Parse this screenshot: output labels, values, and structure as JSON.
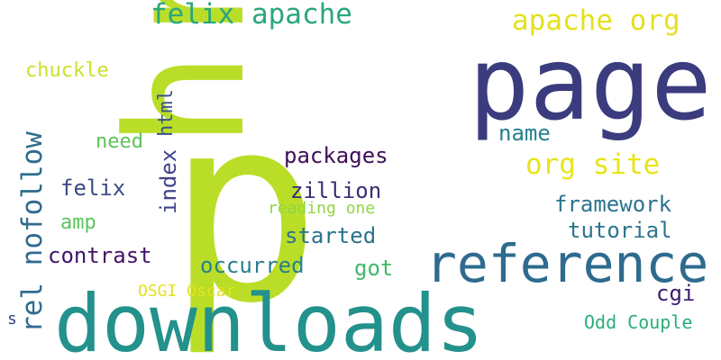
{
  "words": [
    {
      "id": "href",
      "text": "href",
      "color": "#bade28"
    },
    {
      "id": "p",
      "text": "p",
      "color": "#bade28"
    },
    {
      "id": "page",
      "text": "page",
      "color": "#3b3c7e"
    },
    {
      "id": "downloads",
      "text": "downloads",
      "color": "#23918c"
    },
    {
      "id": "reference",
      "text": "reference",
      "color": "#2e6b8e"
    },
    {
      "id": "felix-apache",
      "text": "felix apache",
      "color": "#2aa77f"
    },
    {
      "id": "apache-org",
      "text": "apache org",
      "color": "#e4e11c"
    },
    {
      "id": "org-site",
      "text": "org site",
      "color": "#e8e41a"
    },
    {
      "id": "rel-nofollow",
      "text": "rel nofollow",
      "color": "#2f6c8e"
    },
    {
      "id": "chuckle",
      "text": "chuckle",
      "color": "#cbe12b"
    },
    {
      "id": "html",
      "text": "html",
      "color": "#3a5589"
    },
    {
      "id": "name",
      "text": "name",
      "color": "#257f8e"
    },
    {
      "id": "need",
      "text": "need",
      "color": "#5dc35a"
    },
    {
      "id": "packages",
      "text": "packages",
      "color": "#3f0f57"
    },
    {
      "id": "felix",
      "text": "felix",
      "color": "#3a4b86"
    },
    {
      "id": "index",
      "text": "index",
      "color": "#414487"
    },
    {
      "id": "zillion",
      "text": "zillion",
      "color": "#3d2a75"
    },
    {
      "id": "framework",
      "text": "framework",
      "color": "#2c738e"
    },
    {
      "id": "amp",
      "text": "amp",
      "color": "#5ac55e"
    },
    {
      "id": "reading-one",
      "text": "reading one",
      "color": "#8fd744"
    },
    {
      "id": "tutorial",
      "text": "tutorial",
      "color": "#2b758e"
    },
    {
      "id": "started",
      "text": "started",
      "color": "#2c718e"
    },
    {
      "id": "contrast",
      "text": "contrast",
      "color": "#43146a"
    },
    {
      "id": "occurred",
      "text": "occurred",
      "color": "#277f8e"
    },
    {
      "id": "got",
      "text": "got",
      "color": "#3fb86c"
    },
    {
      "id": "osgi-oscar",
      "text": "OSGI Oscar",
      "color": "#e5e21d"
    },
    {
      "id": "cgi",
      "text": "cgi",
      "color": "#3b1c6e"
    },
    {
      "id": "s",
      "text": "s",
      "color": "#3a4886"
    },
    {
      "id": "odd-couple",
      "text": "Odd Couple",
      "color": "#2aae7b"
    }
  ]
}
